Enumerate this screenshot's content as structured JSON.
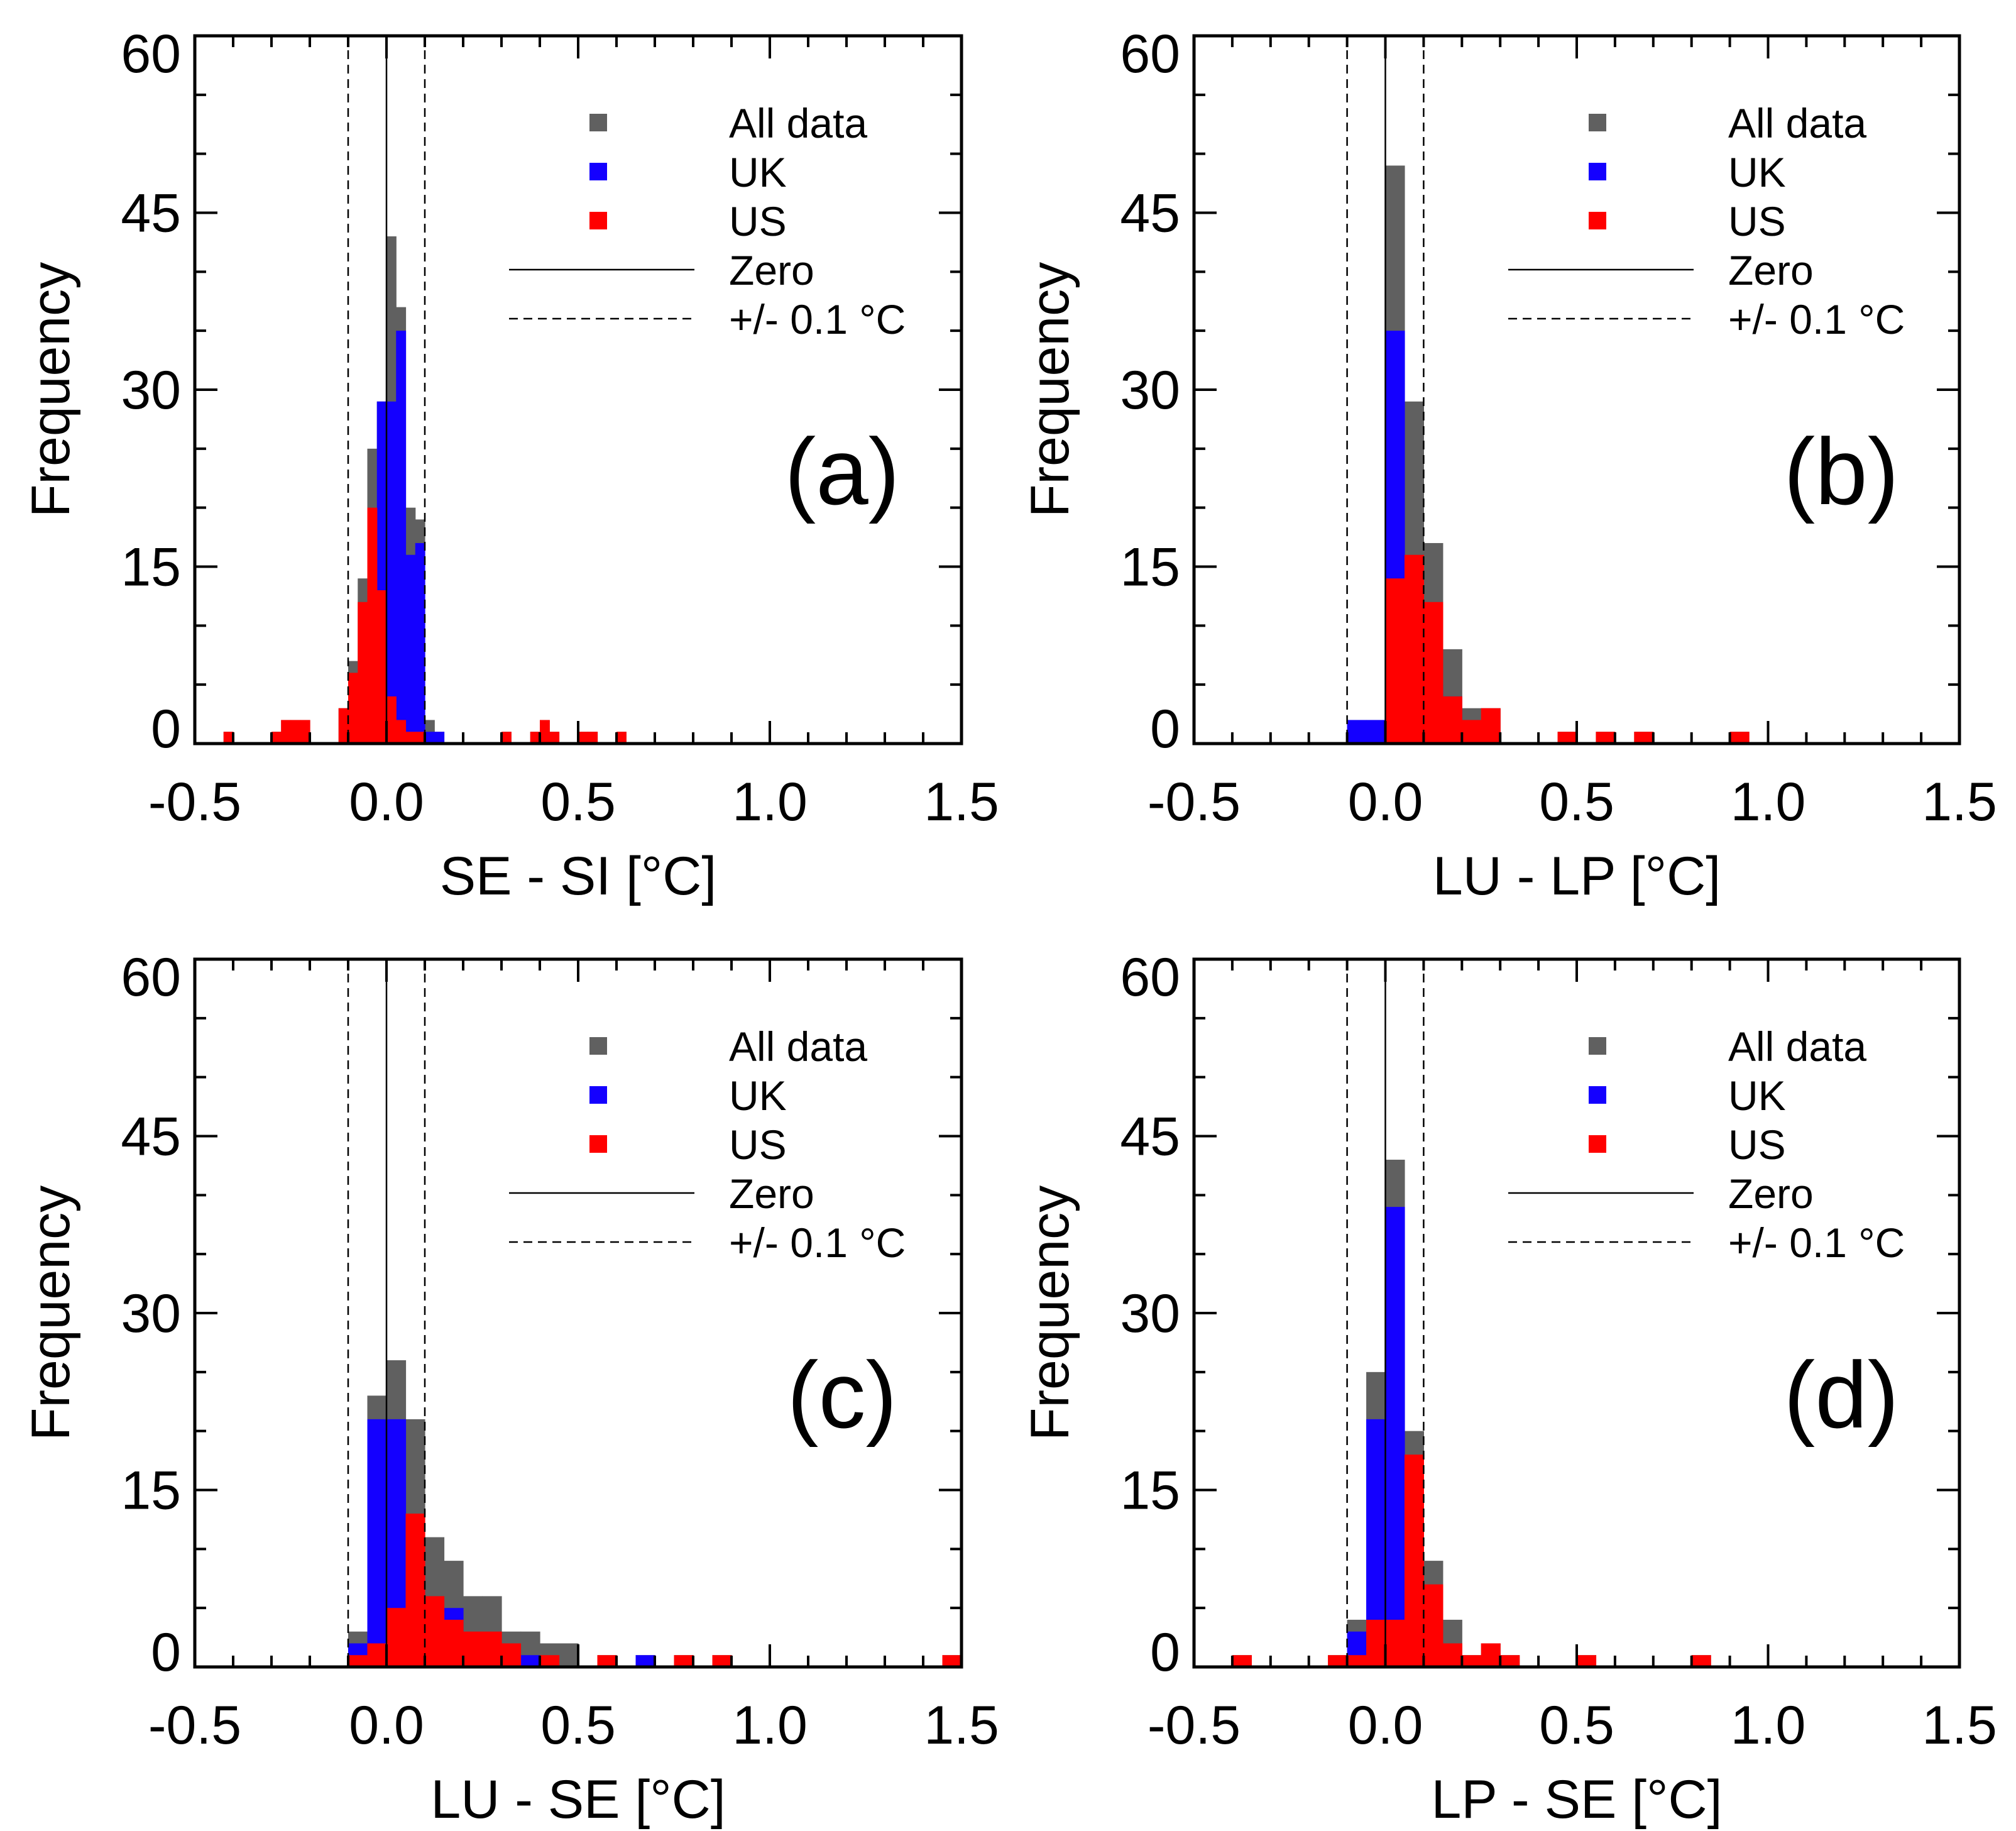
{
  "colors": {
    "all_data": "#606060",
    "uk": "#1400ff",
    "us": "#ff0000",
    "axis": "#000000"
  },
  "legend": {
    "all_data": "All data",
    "uk": "UK",
    "us": "US",
    "zero": "Zero",
    "threshold": "+/- 0.1 °C"
  },
  "ylabel": "Frequency",
  "chart_data": [
    {
      "type": "bar",
      "panel": "(a)",
      "xlabel": "SE - SI [°C]",
      "ylabel": "Frequency",
      "xlim": [
        -0.5,
        1.5
      ],
      "ylim": [
        0,
        60
      ],
      "xticks": [
        "-0.5",
        "0.0",
        "0.5",
        "1.0",
        "1.5"
      ],
      "yticks": [
        "0",
        "15",
        "30",
        "45",
        "60"
      ],
      "bin_width": 0.025,
      "series": [
        {
          "name": "All data",
          "bins": [
            [
              -0.425,
              1
            ],
            [
              -0.3,
              1
            ],
            [
              -0.275,
              2
            ],
            [
              -0.25,
              2
            ],
            [
              -0.225,
              2
            ],
            [
              -0.125,
              3
            ],
            [
              -0.1,
              7
            ],
            [
              -0.075,
              14
            ],
            [
              -0.05,
              25
            ],
            [
              -0.025,
              29
            ],
            [
              0.0,
              43
            ],
            [
              0.025,
              37
            ],
            [
              0.05,
              20
            ],
            [
              0.075,
              19
            ],
            [
              0.1,
              2
            ],
            [
              0.125,
              1
            ],
            [
              0.3,
              1
            ],
            [
              0.375,
              1
            ],
            [
              0.4,
              2
            ],
            [
              0.425,
              1
            ],
            [
              0.5,
              1
            ],
            [
              0.525,
              1
            ],
            [
              0.6,
              1
            ]
          ]
        },
        {
          "name": "UK",
          "bins": [
            [
              -0.075,
              2
            ],
            [
              -0.05,
              8
            ],
            [
              -0.025,
              29
            ],
            [
              0.0,
              29
            ],
            [
              0.025,
              35
            ],
            [
              0.05,
              16
            ],
            [
              0.075,
              17
            ],
            [
              0.1,
              1
            ],
            [
              0.125,
              1
            ]
          ]
        },
        {
          "name": "US",
          "bins": [
            [
              -0.425,
              1
            ],
            [
              -0.3,
              1
            ],
            [
              -0.275,
              2
            ],
            [
              -0.25,
              2
            ],
            [
              -0.225,
              2
            ],
            [
              -0.125,
              3
            ],
            [
              -0.1,
              6
            ],
            [
              -0.075,
              12
            ],
            [
              -0.05,
              20
            ],
            [
              -0.025,
              13
            ],
            [
              0.0,
              4
            ],
            [
              0.025,
              2
            ],
            [
              0.05,
              1
            ],
            [
              0.075,
              1
            ],
            [
              0.3,
              1
            ],
            [
              0.375,
              1
            ],
            [
              0.4,
              2
            ],
            [
              0.425,
              1
            ],
            [
              0.5,
              1
            ],
            [
              0.525,
              1
            ],
            [
              0.6,
              1
            ]
          ]
        }
      ]
    },
    {
      "type": "bar",
      "panel": "(b)",
      "xlabel": "LU - LP [°C]",
      "ylabel": "Frequency",
      "xlim": [
        -0.5,
        1.5
      ],
      "ylim": [
        0,
        60
      ],
      "xticks": [
        "-0.5",
        "0.0",
        "0.5",
        "1.0",
        "1.5"
      ],
      "yticks": [
        "0",
        "15",
        "30",
        "45",
        "60"
      ],
      "bin_width": 0.05,
      "series": [
        {
          "name": "All data",
          "bins": [
            [
              -0.1,
              2
            ],
            [
              -0.05,
              2
            ],
            [
              0.0,
              49
            ],
            [
              0.05,
              29
            ],
            [
              0.1,
              17
            ],
            [
              0.15,
              8
            ],
            [
              0.2,
              3
            ],
            [
              0.25,
              3
            ],
            [
              0.45,
              1
            ],
            [
              0.55,
              1
            ],
            [
              0.65,
              1
            ],
            [
              0.9,
              1
            ]
          ]
        },
        {
          "name": "UK",
          "bins": [
            [
              -0.1,
              2
            ],
            [
              -0.05,
              2
            ],
            [
              0.0,
              35
            ],
            [
              0.05,
              13
            ],
            [
              0.1,
              5
            ],
            [
              0.15,
              4
            ],
            [
              0.2,
              1
            ]
          ]
        },
        {
          "name": "US",
          "bins": [
            [
              0.0,
              14
            ],
            [
              0.05,
              16
            ],
            [
              0.1,
              12
            ],
            [
              0.15,
              4
            ],
            [
              0.2,
              2
            ],
            [
              0.25,
              3
            ],
            [
              0.45,
              1
            ],
            [
              0.55,
              1
            ],
            [
              0.65,
              1
            ],
            [
              0.9,
              1
            ]
          ]
        }
      ]
    },
    {
      "type": "bar",
      "panel": "(c)",
      "xlabel": "LU - SE [°C]",
      "ylabel": "Frequency",
      "xlim": [
        -0.5,
        1.5
      ],
      "ylim": [
        0,
        60
      ],
      "xticks": [
        "-0.5",
        "0.0",
        "0.5",
        "1.0",
        "1.5"
      ],
      "yticks": [
        "0",
        "15",
        "30",
        "45",
        "60"
      ],
      "bin_width": 0.05,
      "series": [
        {
          "name": "All data",
          "bins": [
            [
              -0.1,
              3
            ],
            [
              -0.05,
              23
            ],
            [
              0.0,
              26
            ],
            [
              0.05,
              21
            ],
            [
              0.1,
              11
            ],
            [
              0.15,
              9
            ],
            [
              0.2,
              6
            ],
            [
              0.25,
              6
            ],
            [
              0.3,
              3
            ],
            [
              0.35,
              3
            ],
            [
              0.4,
              2
            ],
            [
              0.45,
              2
            ],
            [
              0.55,
              1
            ],
            [
              0.65,
              1
            ],
            [
              0.75,
              1
            ],
            [
              0.85,
              1
            ],
            [
              1.45,
              1
            ]
          ]
        },
        {
          "name": "UK",
          "bins": [
            [
              -0.1,
              2
            ],
            [
              -0.05,
              21
            ],
            [
              0.0,
              21
            ],
            [
              0.05,
              8
            ],
            [
              0.1,
              5
            ],
            [
              0.15,
              5
            ],
            [
              0.35,
              1
            ],
            [
              0.65,
              1
            ]
          ]
        },
        {
          "name": "US",
          "bins": [
            [
              -0.1,
              1
            ],
            [
              -0.05,
              2
            ],
            [
              0.0,
              5
            ],
            [
              0.05,
              13
            ],
            [
              0.1,
              6
            ],
            [
              0.15,
              4
            ],
            [
              0.2,
              3
            ],
            [
              0.25,
              3
            ],
            [
              0.3,
              2
            ],
            [
              0.4,
              1
            ],
            [
              0.55,
              1
            ],
            [
              0.75,
              1
            ],
            [
              0.85,
              1
            ],
            [
              1.45,
              1
            ]
          ]
        }
      ]
    },
    {
      "type": "bar",
      "panel": "(d)",
      "xlabel": "LP - SE [°C]",
      "ylabel": "Frequency",
      "xlim": [
        -0.5,
        1.5
      ],
      "ylim": [
        0,
        60
      ],
      "xticks": [
        "-0.5",
        "0.0",
        "0.5",
        "1.0",
        "1.5"
      ],
      "yticks": [
        "0",
        "15",
        "30",
        "45",
        "60"
      ],
      "bin_width": 0.05,
      "series": [
        {
          "name": "All data",
          "bins": [
            [
              -0.4,
              1
            ],
            [
              -0.15,
              1
            ],
            [
              -0.1,
              4
            ],
            [
              -0.05,
              25
            ],
            [
              0.0,
              43
            ],
            [
              0.05,
              20
            ],
            [
              0.1,
              9
            ],
            [
              0.15,
              4
            ],
            [
              0.2,
              1
            ],
            [
              0.25,
              2
            ],
            [
              0.3,
              1
            ],
            [
              0.5,
              1
            ],
            [
              0.8,
              1
            ]
          ]
        },
        {
          "name": "UK",
          "bins": [
            [
              -0.1,
              3
            ],
            [
              -0.05,
              21
            ],
            [
              0.0,
              39
            ],
            [
              0.05,
              1
            ]
          ]
        },
        {
          "name": "US",
          "bins": [
            [
              -0.4,
              1
            ],
            [
              -0.15,
              1
            ],
            [
              -0.1,
              1
            ],
            [
              -0.05,
              4
            ],
            [
              0.0,
              4
            ],
            [
              0.05,
              18
            ],
            [
              0.1,
              7
            ],
            [
              0.15,
              2
            ],
            [
              0.2,
              1
            ],
            [
              0.25,
              2
            ],
            [
              0.3,
              1
            ],
            [
              0.5,
              1
            ],
            [
              0.8,
              1
            ]
          ]
        }
      ]
    }
  ]
}
